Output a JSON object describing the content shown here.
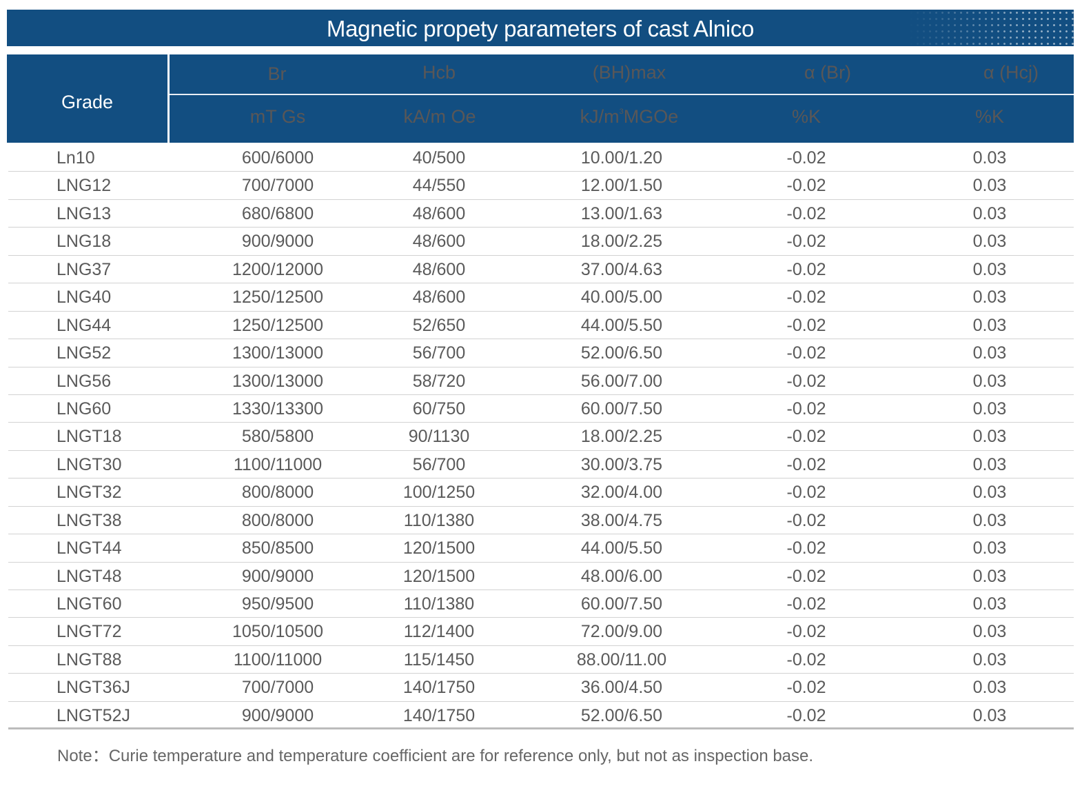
{
  "title": "Magnetic propety parameters of cast Alnico",
  "colors": {
    "header_bg": "#124e81",
    "header_text": "#ffffff",
    "body_text": "#5a5a5a"
  },
  "header": {
    "grade": "Grade",
    "columns": [
      {
        "name": "Br",
        "unit": "mT Gs"
      },
      {
        "name": "Hcb",
        "unit": "kA/m Oe"
      },
      {
        "name": "(BH)max",
        "unit_pre": "kJ/m",
        "unit_sup": "3",
        "unit_post": "MGOe"
      },
      {
        "name": "α (Br)",
        "unit": "%K"
      },
      {
        "name": "α (Hcj)",
        "unit": "%K"
      }
    ]
  },
  "rows": [
    [
      "Ln10",
      "600/6000",
      "40/500",
      "10.00/1.20",
      "-0.02",
      "0.03"
    ],
    [
      "LNG12",
      "700/7000",
      "44/550",
      "12.00/1.50",
      "-0.02",
      "0.03"
    ],
    [
      "LNG13",
      "680/6800",
      "48/600",
      "13.00/1.63",
      "-0.02",
      "0.03"
    ],
    [
      "LNG18",
      "900/9000",
      "48/600",
      "18.00/2.25",
      "-0.02",
      "0.03"
    ],
    [
      "LNG37",
      "1200/12000",
      "48/600",
      "37.00/4.63",
      "-0.02",
      "0.03"
    ],
    [
      "LNG40",
      "1250/12500",
      "48/600",
      "40.00/5.00",
      "-0.02",
      "0.03"
    ],
    [
      "LNG44",
      "1250/12500",
      "52/650",
      "44.00/5.50",
      "-0.02",
      "0.03"
    ],
    [
      "LNG52",
      "1300/13000",
      "56/700",
      "52.00/6.50",
      "-0.02",
      "0.03"
    ],
    [
      "LNG56",
      "1300/13000",
      "58/720",
      "56.00/7.00",
      "-0.02",
      "0.03"
    ],
    [
      "LNG60",
      "1330/13300",
      "60/750",
      "60.00/7.50",
      "-0.02",
      "0.03"
    ],
    [
      "LNGT18",
      "580/5800",
      "90/1130",
      "18.00/2.25",
      "-0.02",
      "0.03"
    ],
    [
      "LNGT30",
      "1100/11000",
      "56/700",
      "30.00/3.75",
      "-0.02",
      "0.03"
    ],
    [
      "LNGT32",
      "800/8000",
      "100/1250",
      "32.00/4.00",
      "-0.02",
      "0.03"
    ],
    [
      "LNGT38",
      "800/8000",
      "110/1380",
      "38.00/4.75",
      "-0.02",
      "0.03"
    ],
    [
      "LNGT44",
      "850/8500",
      "120/1500",
      "44.00/5.50",
      "-0.02",
      "0.03"
    ],
    [
      "LNGT48",
      "900/9000",
      "120/1500",
      "48.00/6.00",
      "-0.02",
      "0.03"
    ],
    [
      "LNGT60",
      "950/9500",
      "110/1380",
      "60.00/7.50",
      "-0.02",
      "0.03"
    ],
    [
      "LNGT72",
      "1050/10500",
      "112/1400",
      "72.00/9.00",
      "-0.02",
      "0.03"
    ],
    [
      "LNGT88",
      "1100/11000",
      "115/1450",
      "88.00/11.00",
      "-0.02",
      "0.03"
    ],
    [
      "LNGT36J",
      "700/7000",
      "140/1750",
      "36.00/4.50",
      "-0.02",
      "0.03"
    ],
    [
      "LNGT52J",
      "900/9000",
      "140/1750",
      "52.00/6.50",
      "-0.02",
      "0.03"
    ]
  ],
  "note": "Note：Curie temperature and temperature coefficient are for reference only, but not as inspection base."
}
